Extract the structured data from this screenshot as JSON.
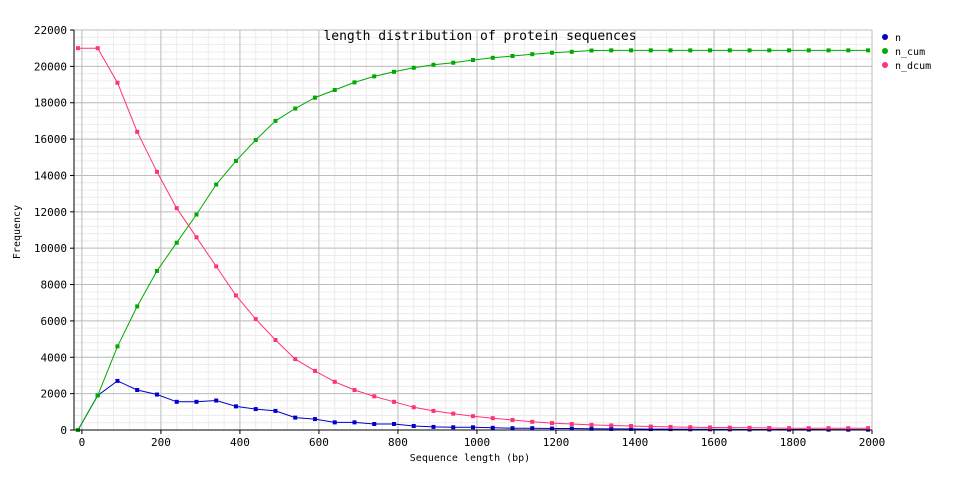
{
  "chart_data": {
    "type": "line",
    "title": "length distribution of protein sequences",
    "xlabel": "Sequence length (bp)",
    "ylabel": "Frequency",
    "xlim": [
      -20,
      2000
    ],
    "ylim": [
      0,
      22000
    ],
    "x_ticks": [
      0,
      200,
      400,
      600,
      800,
      1000,
      1200,
      1400,
      1600,
      1800,
      2000
    ],
    "y_ticks": [
      0,
      2000,
      4000,
      6000,
      8000,
      10000,
      12000,
      14000,
      16000,
      18000,
      20000,
      22000
    ],
    "grid": true,
    "minor_grid": true,
    "legend_position": "right",
    "x": [
      -10,
      40,
      90,
      140,
      190,
      240,
      290,
      340,
      390,
      440,
      490,
      540,
      590,
      640,
      690,
      740,
      790,
      840,
      890,
      940,
      990,
      1040,
      1090,
      1140,
      1190,
      1240,
      1290,
      1340,
      1390,
      1440,
      1490,
      1540,
      1590,
      1640,
      1690,
      1740,
      1790,
      1840,
      1890,
      1940,
      1990
    ],
    "series": [
      {
        "name": "n",
        "color": "#0000cc",
        "values": [
          0,
          1900,
          2700,
          2200,
          1950,
          1550,
          1550,
          1620,
          1300,
          1150,
          1050,
          680,
          600,
          420,
          420,
          330,
          330,
          220,
          170,
          150,
          150,
          120,
          100,
          100,
          80,
          80,
          70,
          60,
          60,
          50,
          50,
          40,
          40,
          35,
          30,
          30,
          25,
          25,
          20,
          20,
          20
        ]
      },
      {
        "name": "n_cum",
        "color": "#00aa00",
        "values": [
          0,
          1900,
          4600,
          6800,
          8750,
          10300,
          11850,
          13500,
          14800,
          15950,
          17000,
          17680,
          18280,
          18700,
          19120,
          19450,
          19700,
          19920,
          20090,
          20200,
          20350,
          20470,
          20570,
          20670,
          20750,
          20800,
          20870,
          20880,
          20880,
          20880,
          20880,
          20880,
          20880,
          20880,
          20880,
          20880,
          20880,
          20880,
          20880,
          20880,
          20880
        ]
      },
      {
        "name": "n_dcum",
        "color": "#ff3377",
        "values": [
          21000,
          21000,
          19100,
          16400,
          14200,
          12200,
          10600,
          9000,
          7400,
          6100,
          4950,
          3900,
          3250,
          2650,
          2200,
          1850,
          1550,
          1250,
          1050,
          900,
          760,
          650,
          550,
          450,
          380,
          330,
          280,
          250,
          220,
          190,
          170,
          150,
          140,
          130,
          120,
          110,
          100,
          100,
          100,
          100,
          100
        ]
      }
    ]
  }
}
